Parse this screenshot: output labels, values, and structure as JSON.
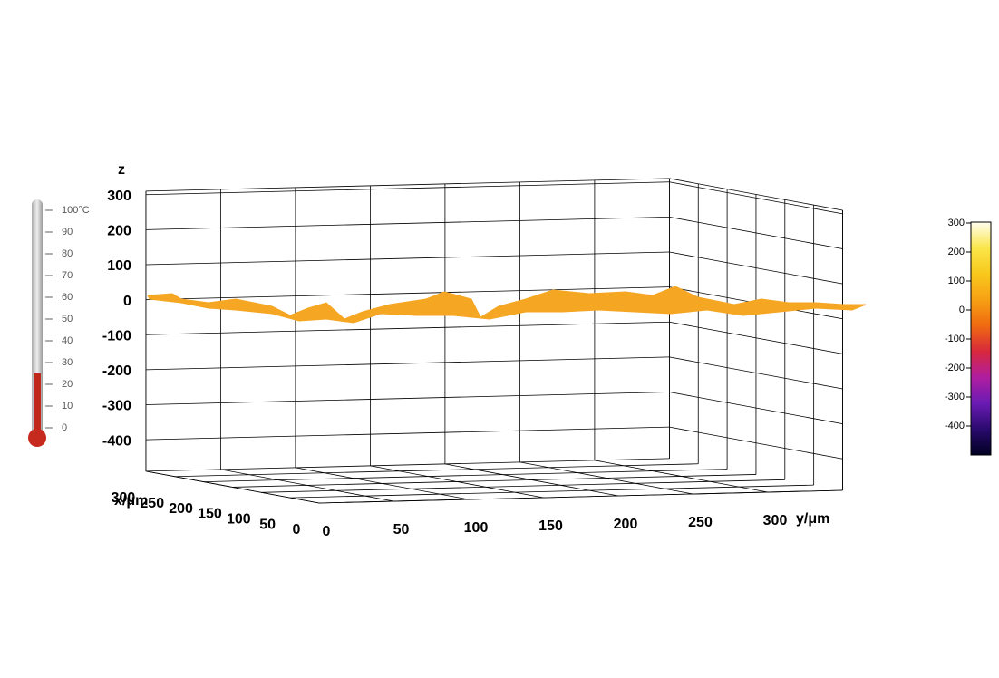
{
  "chart_data": {
    "type": "surface3d",
    "zlabel": "z",
    "xlabel": "x/μm",
    "ylabel": "y/μm",
    "zlim": [
      -490,
      310
    ],
    "zticks": [
      300,
      200,
      100,
      0,
      -100,
      -200,
      -300,
      -400
    ],
    "xlim": [
      0,
      300
    ],
    "xticks": [
      300,
      250,
      200,
      150,
      100,
      50,
      0
    ],
    "ylim": [
      0,
      350
    ],
    "yticks": [
      0,
      50,
      100,
      150,
      200,
      250,
      300
    ],
    "surface_color": "#f5a623",
    "colorbar": {
      "lim": [
        -500,
        300
      ],
      "ticks": [
        300,
        200,
        100,
        0,
        -100,
        -200,
        -300,
        -400
      ],
      "colors": [
        "#000020",
        "#2a0a6e",
        "#6a1bb4",
        "#b01ea0",
        "#d8283c",
        "#ef6a10",
        "#f7a014",
        "#f8c81c",
        "#fae64a",
        "#fffef0"
      ]
    },
    "thermometer": {
      "lim": [
        0,
        100
      ],
      "level": 25,
      "ticks": [
        {
          "value": 100,
          "label": "100°C"
        },
        90,
        80,
        70,
        60,
        50,
        40,
        30,
        20,
        10,
        0
      ]
    }
  }
}
